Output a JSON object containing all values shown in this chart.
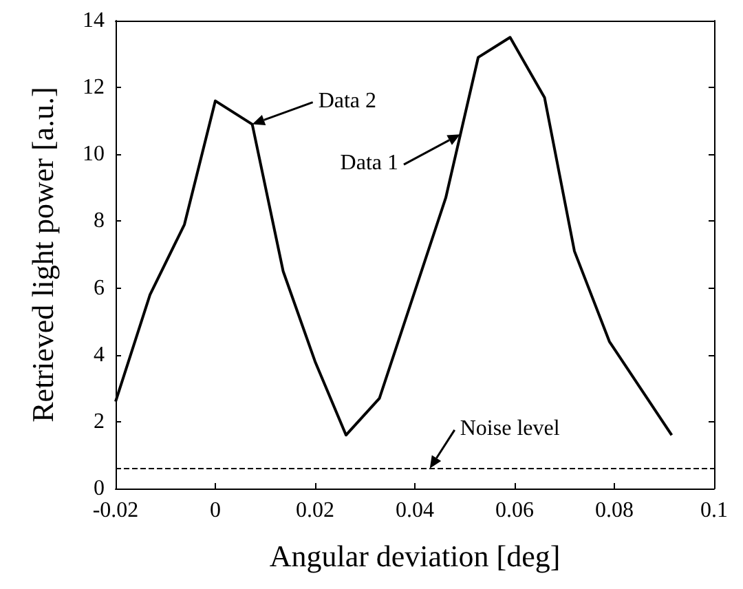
{
  "chart_data": {
    "type": "line",
    "xlabel": "Angular deviation [deg]",
    "ylabel": "Retrieved light power [a.u.]",
    "x": [
      -0.02,
      -0.0131,
      -0.0062,
      0,
      0.0074,
      0.0136,
      0.02,
      0.0262,
      0.0329,
      0.0462,
      0.0527,
      0.0591,
      0.066,
      0.072,
      0.079,
      0.0915
    ],
    "series": [
      {
        "color": "#000000",
        "values": [
          2.6,
          5.8,
          7.9,
          11.6,
          10.9,
          6.5,
          3.8,
          1.6,
          2.7,
          8.7,
          12.9,
          13.5,
          11.7,
          7.1,
          4.4,
          1.6
        ]
      }
    ],
    "xlim": [
      -0.02,
      0.1
    ],
    "xticks": [
      -0.02,
      0,
      0.02,
      0.04,
      0.06,
      0.08,
      0.1
    ],
    "ylim": [
      0,
      14
    ],
    "yticks": [
      0,
      2,
      4,
      6,
      8,
      10,
      12,
      14
    ],
    "ref_lines": [
      {
        "axis": "y",
        "value": 0.6,
        "label": null,
        "color": "#000000",
        "line_style": "dashed"
      }
    ],
    "annotations": [
      {
        "text": "Data 2",
        "x": 0.0074,
        "y": 10.9
      },
      {
        "text": "Data 1",
        "x": 0.0491,
        "y": 10.6
      },
      {
        "text": "Noise level",
        "x": 0.043,
        "y": 0.6
      }
    ],
    "grid": false,
    "marker": "none",
    "line_style": "solid"
  }
}
